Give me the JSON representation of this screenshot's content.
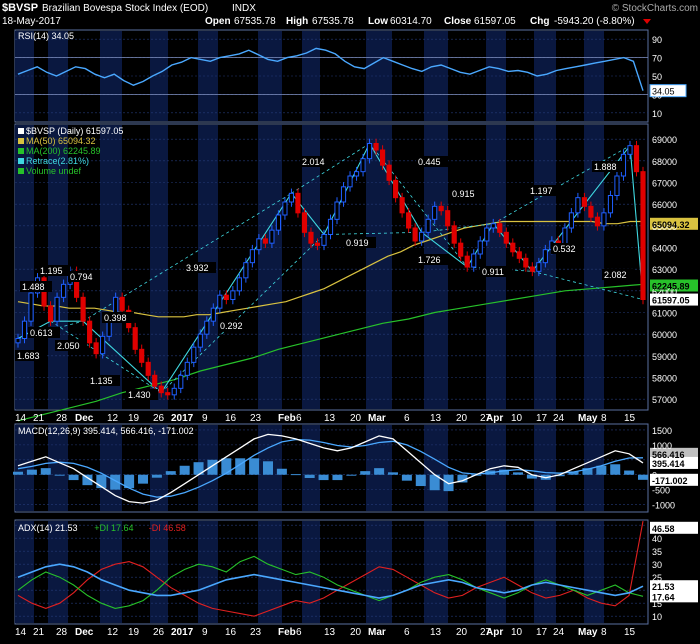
{
  "header": {
    "symbol": "$BVSP",
    "name": "Brazilian Bovespa Stock Index (EOD)",
    "exchange": "INDX",
    "date": "18-May-2017",
    "open_label": "Open",
    "open": "67535.78",
    "high_label": "High",
    "high": "67535.78",
    "low_label": "Low",
    "low": "60314.70",
    "close_label": "Close",
    "close": "61597.05",
    "chg_label": "Chg",
    "chg": "-5943.20 (-8.80%)",
    "watermark": "© StockCharts.com"
  },
  "colors": {
    "background": "#000000",
    "panel_band": "#0a1840",
    "grid": "#243a78",
    "price_up": "#1f5fff",
    "price_down": "#e00000",
    "rsi": "#4aa8ff",
    "ma50": "#d9c240",
    "ma200": "#27c12a",
    "zigzag": "#3fd8e0",
    "macd": "#ffffff",
    "signal": "#4aa8ff",
    "histogram": "#3a8cd4",
    "adx": "#4aa8ff",
    "plus_di": "#27c12a",
    "minus_di": "#e02020"
  },
  "x_axis_labels": [
    "14",
    "21",
    "28",
    "Dec",
    "12",
    "19",
    "26",
    "2017",
    "9",
    "16",
    "23",
    "Feb",
    "6",
    "13",
    "20",
    "Mar",
    "6",
    "13",
    "20",
    "27",
    "Apr",
    "10",
    "17",
    "24",
    "May",
    "8",
    "15"
  ],
  "chart_data": [
    {
      "type": "line",
      "panel": "rsi",
      "legend": "RSI(14) 34.05",
      "y_ticks": [
        10,
        30,
        50,
        70,
        90
      ],
      "ylim": [
        0,
        100
      ],
      "last_value": "34.05",
      "series": [
        {
          "name": "RSI(14)",
          "values": [
            52,
            56,
            60,
            54,
            50,
            55,
            60,
            58,
            52,
            48,
            52,
            45,
            40,
            44,
            50,
            55,
            62,
            65,
            70,
            68,
            66,
            70,
            72,
            74,
            78,
            73,
            68,
            66,
            70,
            72,
            75,
            80,
            78,
            74,
            66,
            60,
            58,
            64,
            70,
            66,
            62,
            58,
            55,
            60,
            62,
            58,
            54,
            52,
            56,
            60,
            58,
            55,
            56,
            54,
            50,
            52,
            56,
            58,
            60,
            62,
            64,
            66,
            68,
            70,
            66,
            34
          ]
        }
      ]
    },
    {
      "type": "candlestick",
      "panel": "price",
      "legend": [
        "$BVSP (Daily) 61597.05",
        "MA(50) 65094.32",
        "MA(200) 62245.89",
        "Retrace(2.81%)",
        "Volume undef"
      ],
      "y_ticks": [
        57000,
        58000,
        59000,
        60000,
        61000,
        62000,
        63000,
        64000,
        65000,
        66000,
        67000,
        68000,
        69000
      ],
      "ylim": [
        56500,
        69700
      ],
      "last_labels": [
        "65094.32",
        "62245.89",
        "61597.05"
      ],
      "close": [
        59800,
        60600,
        61900,
        62600,
        61300,
        60600,
        61700,
        62300,
        62900,
        61700,
        60600,
        59600,
        59100,
        59900,
        60800,
        61700,
        61100,
        60300,
        59300,
        58700,
        58100,
        57600,
        57300,
        57200,
        57500,
        58100,
        58700,
        59400,
        60000,
        60600,
        61200,
        61800,
        61600,
        62000,
        62600,
        63300,
        63900,
        64400,
        64200,
        64800,
        65500,
        66100,
        66500,
        65600,
        64700,
        64200,
        64100,
        64600,
        65300,
        66100,
        66800,
        67300,
        67500,
        68100,
        68800,
        68500,
        67800,
        67100,
        66300,
        65600,
        64900,
        64300,
        64700,
        65300,
        65900,
        65700,
        65000,
        64200,
        63600,
        63100,
        63700,
        64300,
        64900,
        65100,
        64700,
        64200,
        63800,
        63500,
        63100,
        62900,
        63300,
        63900,
        64300,
        64100,
        64900,
        65600,
        66300,
        65900,
        65400,
        65000,
        65600,
        66400,
        67300,
        68300,
        68700,
        67500,
        61600
      ],
      "series": [
        {
          "name": "MA(50)",
          "values": [
            61500,
            61400,
            61300,
            61300,
            61200,
            61200,
            61200,
            61100,
            61000,
            61000,
            60900,
            60800,
            60800,
            60800,
            60900,
            60900,
            61000,
            61100,
            61200,
            61300,
            61400,
            61500,
            61700,
            61900,
            62100,
            62400,
            62700,
            63000,
            63300,
            63600,
            63800,
            64100,
            64300,
            64500,
            64700,
            64900,
            65000,
            65100,
            65200,
            65200,
            65200,
            65200,
            65200,
            65200,
            65200,
            65200,
            65100,
            65100,
            65200,
            65200
          ]
        },
        {
          "name": "MA(200)",
          "values": [
            56000,
            56300,
            56600,
            56900,
            57300,
            57600,
            57900,
            58300,
            58600,
            58900,
            59300,
            59600,
            59900,
            60200,
            60500,
            60700,
            61000,
            61200,
            61400,
            61600,
            61800,
            62000,
            62100,
            62200,
            62300
          ]
        }
      ],
      "zigzag_labels": [
        "1.683",
        "1.488",
        "0.613",
        "1.195",
        "0.794",
        "2.050",
        "0.398",
        "1.135",
        "1.430",
        "3.932",
        "0.292",
        "2.014",
        "0.919",
        "0.445",
        "1.726",
        "0.915",
        "0.911",
        "1.197",
        "0.532",
        "1.888",
        "2.082"
      ]
    },
    {
      "type": "line",
      "panel": "macd",
      "legend": "MACD(12,26,9) 395.414, 566.416, -171.002",
      "y_ticks": [
        -1000,
        -500,
        0,
        500,
        1000,
        1500
      ],
      "ylim": [
        -1250,
        1700
      ],
      "last_labels": [
        "566.416",
        "395.414",
        "-171.002"
      ],
      "series": [
        {
          "name": "MACD",
          "values": [
            300,
            450,
            600,
            400,
            200,
            -100,
            -400,
            -700,
            -900,
            -950,
            -850,
            -600,
            -300,
            0,
            300,
            600,
            900,
            1200,
            1350,
            1300,
            1200,
            1050,
            900,
            800,
            900,
            1100,
            1300,
            1200,
            800,
            400,
            0,
            -300,
            -200,
            0,
            200,
            300,
            250,
            0,
            -100,
            0,
            200,
            400,
            600,
            800,
            700,
            395
          ]
        },
        {
          "name": "Signal",
          "values": [
            200,
            280,
            380,
            420,
            380,
            250,
            50,
            -200,
            -450,
            -650,
            -750,
            -720,
            -600,
            -420,
            -200,
            50,
            350,
            650,
            900,
            1100,
            1180,
            1160,
            1080,
            980,
            930,
            980,
            1080,
            1120,
            1000,
            780,
            520,
            250,
            60,
            20,
            60,
            130,
            170,
            130,
            70,
            50,
            90,
            180,
            300,
            450,
            560,
            566
          ]
        }
      ]
    },
    {
      "type": "line",
      "panel": "adx",
      "legend": [
        "ADX(14) 21.53",
        "+DI 17.64",
        "-DI 46.58"
      ],
      "y_ticks": [
        10,
        15,
        20,
        25,
        30,
        35,
        40,
        45
      ],
      "ylim": [
        7,
        47
      ],
      "last_labels": [
        "46.58",
        "21.53",
        "17.64"
      ],
      "series": [
        {
          "name": "ADX(14)",
          "values": [
            25,
            27,
            29,
            30,
            29,
            27,
            24,
            22,
            20,
            19,
            18,
            18,
            19,
            20,
            22,
            24,
            25,
            26,
            25,
            24,
            23,
            22,
            21,
            20,
            19,
            18,
            17,
            18,
            20,
            22,
            23,
            24,
            23,
            21,
            20,
            19,
            20,
            22,
            23,
            22,
            21,
            20,
            19,
            18,
            19,
            21.53
          ]
        },
        {
          "name": "+DI",
          "values": [
            20,
            24,
            27,
            25,
            22,
            18,
            15,
            13,
            14,
            16,
            20,
            25,
            28,
            30,
            29,
            27,
            31,
            33,
            30,
            28,
            26,
            27,
            25,
            22,
            20,
            18,
            16,
            18,
            20,
            23,
            25,
            26,
            24,
            21,
            19,
            17,
            19,
            22,
            24,
            22,
            20,
            18,
            20,
            22,
            19,
            17.64
          ]
        },
        {
          "name": "-DI",
          "values": [
            18,
            15,
            13,
            15,
            19,
            24,
            28,
            30,
            31,
            29,
            25,
            21,
            18,
            15,
            13,
            12,
            11,
            10,
            12,
            14,
            16,
            15,
            17,
            20,
            23,
            26,
            29,
            28,
            25,
            22,
            19,
            17,
            18,
            21,
            23,
            25,
            22,
            19,
            17,
            18,
            20,
            17,
            15,
            14,
            18,
            46.58
          ]
        }
      ]
    }
  ]
}
